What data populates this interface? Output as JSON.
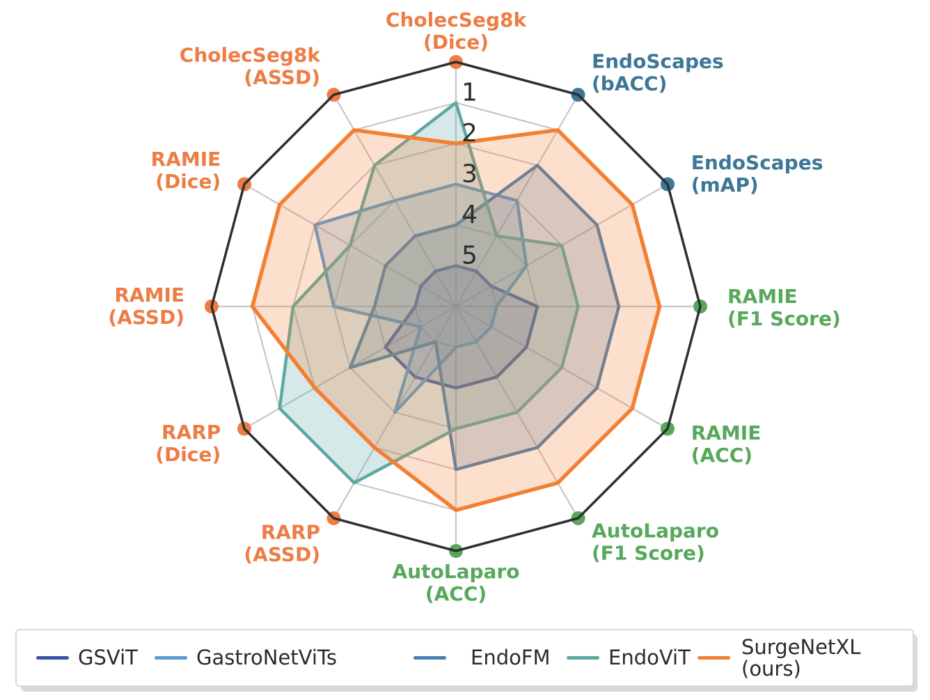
{
  "chart_data": {
    "type": "radar",
    "title": "",
    "rank_ticks": [
      "1",
      "2",
      "3",
      "4",
      "5"
    ],
    "rank_range": [
      1,
      5
    ],
    "best_rank_at_outer_edge": 1,
    "grid": "on",
    "legend_position": "bottom",
    "outline_color": "#2f2f2f",
    "grid_color": "#c7c7cb",
    "tick_color": "#2d2d2d",
    "axes": [
      {
        "label_lines": [
          "CholecSeg8k",
          "(Dice)"
        ],
        "color": "#ED7D45"
      },
      {
        "label_lines": [
          "EndoScapes",
          "(bACC)"
        ],
        "color": "#3E7795"
      },
      {
        "label_lines": [
          "EndoScapes",
          "(mAP)"
        ],
        "color": "#3E7795"
      },
      {
        "label_lines": [
          "RAMIE",
          "(F1 Score)"
        ],
        "color": "#57A85C"
      },
      {
        "label_lines": [
          "RAMIE",
          "(ACC)"
        ],
        "color": "#57A85C"
      },
      {
        "label_lines": [
          "AutoLaparo",
          "(F1 Score)"
        ],
        "color": "#57A85C"
      },
      {
        "label_lines": [
          "AutoLaparo",
          "(ACC)"
        ],
        "color": "#57A85C"
      },
      {
        "label_lines": [
          "RARP",
          "(ASSD)"
        ],
        "color": "#ED7D45"
      },
      {
        "label_lines": [
          "RARP",
          "(Dice)"
        ],
        "color": "#ED7D45"
      },
      {
        "label_lines": [
          "RAMIE",
          "(ASSD)"
        ],
        "color": "#ED7D45"
      },
      {
        "label_lines": [
          "RAMIE",
          "(Dice)"
        ],
        "color": "#ED7D45"
      },
      {
        "label_lines": [
          "CholecSeg8k",
          "(ASSD)"
        ],
        "color": "#ED7D45"
      }
    ],
    "series": [
      {
        "name": "GSViT",
        "legend_lines": [
          "GSViT"
        ],
        "color": "#3B53A5",
        "ranks": [
          5,
          5,
          5,
          4,
          4,
          4,
          4,
          4,
          4,
          5,
          5,
          5
        ]
      },
      {
        "name": "GastroNetViTs",
        "legend_lines": [
          "GastroNetViTs"
        ],
        "color": "#5B9BD5",
        "ranks": [
          3,
          3,
          4,
          5,
          5,
          5,
          5,
          3,
          5,
          3,
          2,
          3
        ]
      },
      {
        "name": "EndoFM",
        "legend_lines": [
          "EndoFM"
        ],
        "color": "#4880B0",
        "ranks": [
          4,
          2,
          2,
          2,
          2,
          2,
          2,
          5,
          3,
          4,
          4,
          4
        ]
      },
      {
        "name": "EndoViT",
        "legend_lines": [
          "EndoViT"
        ],
        "color": "#5CA8A2",
        "ranks": [
          1,
          4,
          3,
          3,
          3,
          3,
          3,
          1,
          1,
          2,
          3,
          2
        ]
      },
      {
        "name": "SurgeNetXL (ours)",
        "legend_lines": [
          "SurgeNetXL",
          "(ours)"
        ],
        "color": "#F28033",
        "ranks": [
          2,
          1,
          1,
          1,
          1,
          1,
          1,
          2,
          2,
          1,
          1,
          1
        ]
      }
    ]
  }
}
